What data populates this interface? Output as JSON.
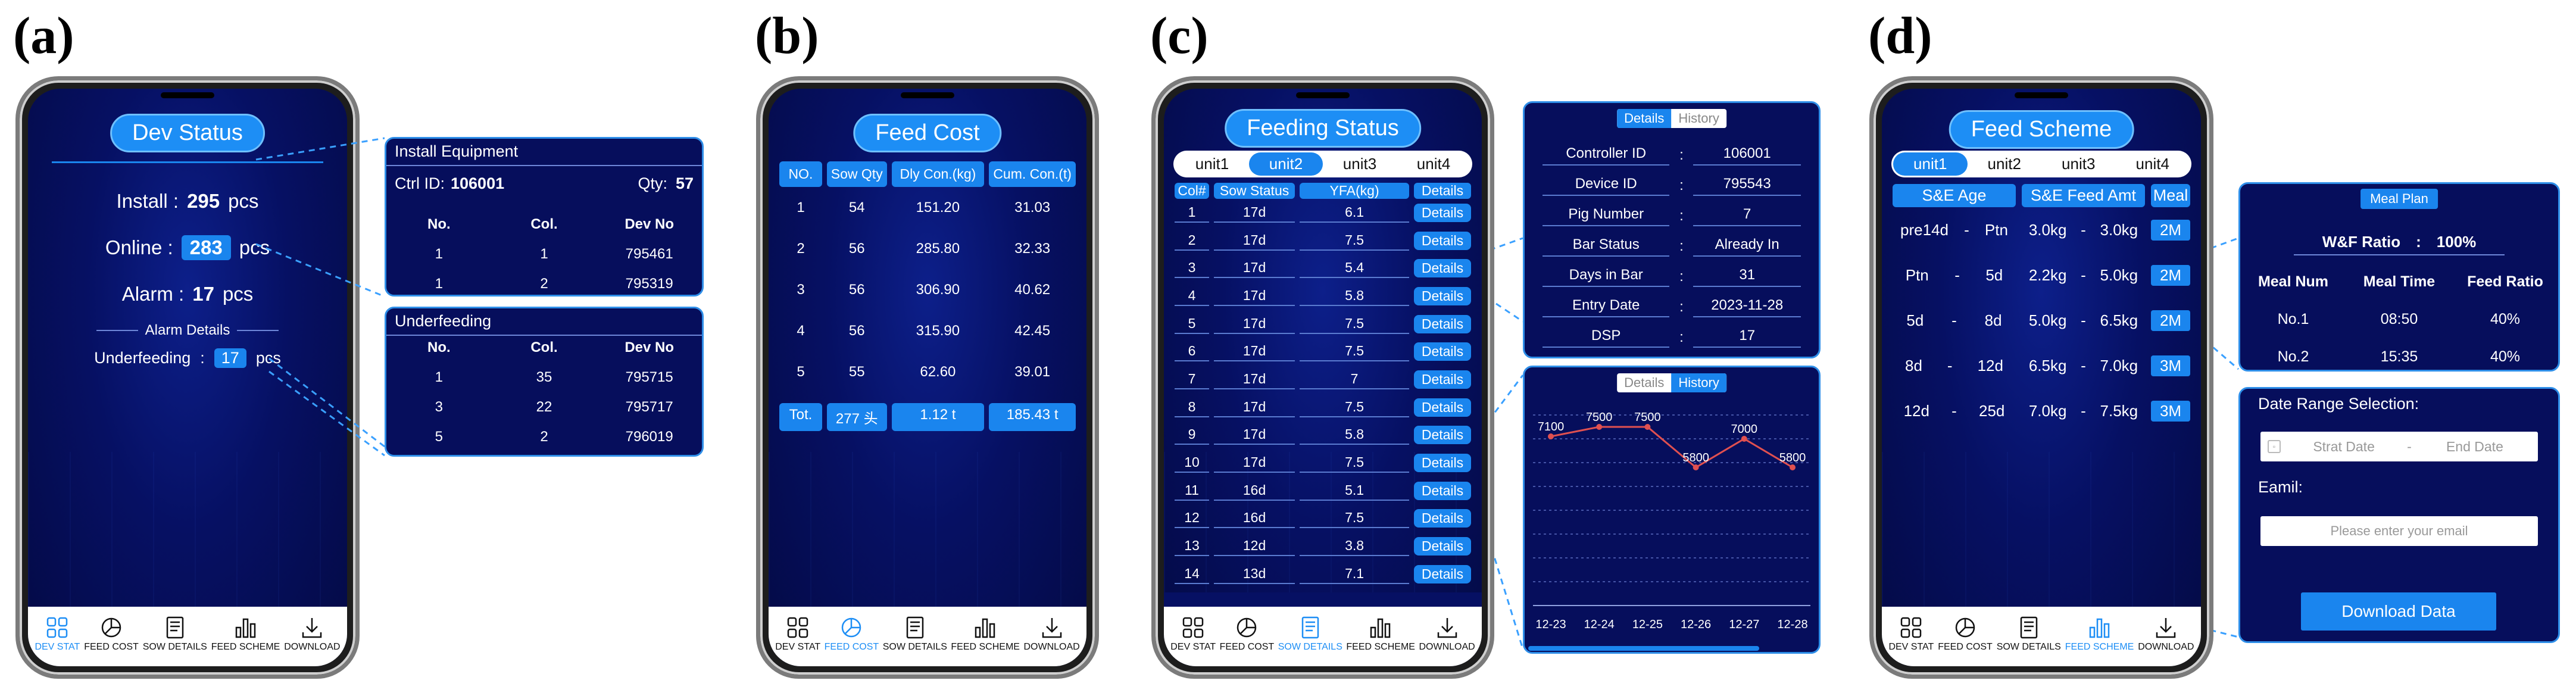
{
  "labels": {
    "a": "(a)",
    "b": "(b)",
    "c": "(c)",
    "d": "(d)"
  },
  "nav": {
    "dev_stat": "DEV STAT",
    "feed_cost": "FEED COST",
    "sow_details": "SOW DETAILS",
    "feed_scheme": "FEED SCHEME",
    "download": "DOWNLOAD"
  },
  "a": {
    "title": "Dev Status",
    "install_label": "Install :",
    "install_value": "295",
    "install_unit": "pcs",
    "online_label": "Online :",
    "online_value": "283",
    "online_unit": "pcs",
    "alarm_label": "Alarm :",
    "alarm_value": "17",
    "alarm_unit": "pcs",
    "alarm_details": "Alarm Details",
    "under_label": "Underfeeding",
    "under_colon": ":",
    "under_value": "17",
    "under_unit": "pcs",
    "install_popup": {
      "title": "Install Equipment",
      "ctrl_label": "Ctrl ID:",
      "ctrl_value": "106001",
      "qty_label": "Qty:",
      "qty_value": "57",
      "headers": [
        "No.",
        "Col.",
        "Dev No"
      ],
      "rows": [
        [
          "1",
          "1",
          "795461"
        ],
        [
          "1",
          "2",
          "795319"
        ]
      ]
    },
    "under_popup": {
      "title": "Underfeeding",
      "headers": [
        "No.",
        "Col.",
        "Dev No"
      ],
      "rows": [
        [
          "1",
          "35",
          "795715"
        ],
        [
          "3",
          "22",
          "795717"
        ],
        [
          "5",
          "2",
          "796019"
        ]
      ]
    }
  },
  "b": {
    "title": "Feed Cost",
    "headers": [
      "NO.",
      "Sow Qty",
      "Dly Con.(kg)",
      "Cum. Con.(t)"
    ],
    "rows": [
      [
        "1",
        "54",
        "151.20",
        "31.03"
      ],
      [
        "2",
        "56",
        "285.80",
        "32.33"
      ],
      [
        "3",
        "56",
        "306.90",
        "40.62"
      ],
      [
        "4",
        "56",
        "315.90",
        "42.45"
      ],
      [
        "5",
        "55",
        "62.60",
        "39.01"
      ]
    ],
    "total": [
      "Tot.",
      "277 头",
      "1.12 t",
      "185.43 t"
    ]
  },
  "c": {
    "title": "Feeding Status",
    "tabs": [
      "unit1",
      "unit2",
      "unit3",
      "unit4"
    ],
    "headers": [
      "Col#",
      "Sow Status",
      "YFA(kg)",
      "Details"
    ],
    "rows": [
      [
        "1",
        "17d",
        "6.1"
      ],
      [
        "2",
        "17d",
        "7.5"
      ],
      [
        "3",
        "17d",
        "5.4"
      ],
      [
        "4",
        "17d",
        "5.8"
      ],
      [
        "5",
        "17d",
        "7.5"
      ],
      [
        "6",
        "17d",
        "7.5"
      ],
      [
        "7",
        "17d",
        "7"
      ],
      [
        "8",
        "17d",
        "7.5"
      ],
      [
        "9",
        "17d",
        "5.8"
      ],
      [
        "10",
        "17d",
        "7.5"
      ],
      [
        "11",
        "16d",
        "5.1"
      ],
      [
        "12",
        "16d",
        "7.5"
      ],
      [
        "13",
        "12d",
        "3.8"
      ],
      [
        "14",
        "13d",
        "7.1"
      ]
    ],
    "details_label": "Details",
    "detail_popup": {
      "tab_details": "Details",
      "tab_history": "History",
      "fields": [
        [
          "Controller ID",
          ":",
          "106001"
        ],
        [
          "Device ID",
          ":",
          "795543"
        ],
        [
          "Pig Number",
          ":",
          "7"
        ],
        [
          "Bar Status",
          ":",
          "Already In"
        ],
        [
          "Days in Bar",
          ":",
          "31"
        ],
        [
          "Entry Date",
          ":",
          "2023-11-28"
        ],
        [
          "DSP",
          ":",
          "17"
        ]
      ]
    },
    "history_popup": {
      "tab_details": "Details",
      "tab_history": "History",
      "chart_data": {
        "type": "line",
        "categories": [
          "12-23",
          "12-24",
          "12-25",
          "12-26",
          "12-27",
          "12-28"
        ],
        "values": [
          7100,
          7500,
          7500,
          5800,
          7000,
          5800
        ],
        "labels": [
          "7100",
          "7500",
          "7500",
          "5800",
          "7000",
          "5800"
        ],
        "ylim": [
          0,
          8000
        ],
        "grid": true,
        "color": "#e05050"
      }
    }
  },
  "d": {
    "title": "Feed Scheme",
    "tabs": [
      "unit1",
      "unit2",
      "unit3",
      "unit4"
    ],
    "col_age": "S&E Age",
    "col_amt": "S&E Feed Amt",
    "col_meal": "Meal",
    "rows": [
      [
        "pre14d",
        "-",
        "Ptn",
        "3.0kg",
        "-",
        "3.0kg",
        "2M"
      ],
      [
        "Ptn",
        "-",
        "5d",
        "2.2kg",
        "-",
        "5.0kg",
        "2M"
      ],
      [
        "5d",
        "-",
        "8d",
        "5.0kg",
        "-",
        "6.5kg",
        "2M"
      ],
      [
        "8d",
        "-",
        "12d",
        "6.5kg",
        "-",
        "7.0kg",
        "3M"
      ],
      [
        "12d",
        "-",
        "25d",
        "7.0kg",
        "-",
        "7.5kg",
        "3M"
      ]
    ],
    "meal_popup": {
      "title": "Meal Plan",
      "ratio_label": "W&F Ratio",
      "ratio_colon": ":",
      "ratio_value": "100%",
      "headers": [
        "Meal Num",
        "Meal Time",
        "Feed Ratio"
      ],
      "rows": [
        [
          "No.1",
          "08:50",
          "40%"
        ],
        [
          "No.2",
          "15:35",
          "40%"
        ]
      ]
    },
    "download_popup": {
      "date_label": "Date Range Selection:",
      "start_placeholder": "Strat Date",
      "dash": "-",
      "end_placeholder": "End Date",
      "email_label": "Eamil:",
      "email_placeholder": "Please enter your email",
      "button": "Download Data"
    }
  }
}
